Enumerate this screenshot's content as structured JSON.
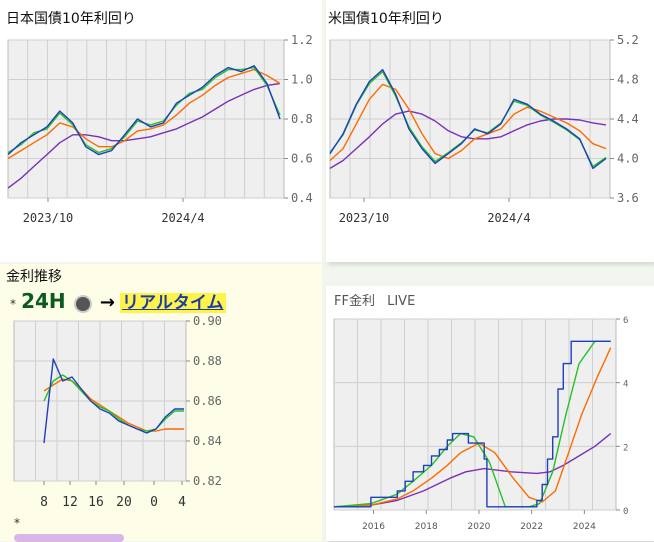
{
  "chart_data": [
    {
      "type": "line",
      "title": "日本国債10年利回り",
      "x_tick_labels": [
        "2023/10",
        "2024/4"
      ],
      "y_ticks": [
        "0.4",
        "0.6",
        "0.8",
        "1.0",
        "1.2"
      ],
      "ylim": [
        0.4,
        1.2
      ],
      "grid": true,
      "series": [
        {
          "color": "#1f3fbf",
          "values": [
            0.62,
            0.68,
            0.72,
            0.76,
            0.84,
            0.78,
            0.66,
            0.62,
            0.64,
            0.72,
            0.8,
            0.76,
            0.78,
            0.88,
            0.92,
            0.96,
            1.02,
            1.06,
            1.04,
            1.07,
            0.98,
            0.8
          ]
        },
        {
          "color": "#22c322",
          "values": [
            0.63,
            0.67,
            0.73,
            0.75,
            0.83,
            0.77,
            0.67,
            0.63,
            0.65,
            0.71,
            0.79,
            0.77,
            0.79,
            0.87,
            0.93,
            0.95,
            1.01,
            1.05,
            1.05,
            1.06,
            0.97,
            0.82
          ]
        },
        {
          "color": "#ff6a00",
          "values": [
            0.6,
            0.64,
            0.68,
            0.72,
            0.78,
            0.76,
            0.7,
            0.66,
            0.66,
            0.69,
            0.74,
            0.75,
            0.77,
            0.82,
            0.88,
            0.92,
            0.97,
            1.01,
            1.03,
            1.05,
            1.02,
            0.98
          ]
        },
        {
          "color": "#7a30b8",
          "values": [
            0.45,
            0.5,
            0.56,
            0.62,
            0.68,
            0.72,
            0.72,
            0.71,
            0.69,
            0.69,
            0.7,
            0.71,
            0.73,
            0.75,
            0.78,
            0.81,
            0.85,
            0.89,
            0.92,
            0.95,
            0.97,
            0.98
          ]
        }
      ]
    },
    {
      "type": "line",
      "title": "米国債10年利回り",
      "x_tick_labels": [
        "2023/10",
        "2024/4"
      ],
      "y_ticks": [
        "3.6",
        "4.0",
        "4.4",
        "4.8",
        "5.2"
      ],
      "ylim": [
        3.6,
        5.2
      ],
      "grid": true,
      "series": [
        {
          "color": "#1f3fbf",
          "values": [
            4.05,
            4.25,
            4.55,
            4.78,
            4.9,
            4.65,
            4.3,
            4.1,
            3.95,
            4.05,
            4.15,
            4.3,
            4.25,
            4.35,
            4.6,
            4.55,
            4.45,
            4.38,
            4.3,
            4.2,
            3.9,
            4.0
          ]
        },
        {
          "color": "#22c322",
          "values": [
            4.06,
            4.24,
            4.54,
            4.76,
            4.88,
            4.63,
            4.32,
            4.12,
            3.97,
            4.06,
            4.16,
            4.29,
            4.26,
            4.36,
            4.58,
            4.54,
            4.44,
            4.37,
            4.29,
            4.19,
            3.92,
            4.01
          ]
        },
        {
          "color": "#ff6a00",
          "values": [
            3.98,
            4.1,
            4.35,
            4.6,
            4.75,
            4.7,
            4.5,
            4.25,
            4.05,
            4.0,
            4.08,
            4.2,
            4.25,
            4.3,
            4.45,
            4.52,
            4.48,
            4.42,
            4.36,
            4.28,
            4.15,
            4.1
          ]
        },
        {
          "color": "#7a30b8",
          "values": [
            3.9,
            3.98,
            4.1,
            4.22,
            4.35,
            4.45,
            4.48,
            4.45,
            4.38,
            4.28,
            4.22,
            4.2,
            4.2,
            4.22,
            4.28,
            4.34,
            4.38,
            4.4,
            4.4,
            4.39,
            4.36,
            4.34
          ]
        }
      ]
    },
    {
      "type": "line",
      "title": "金利推移",
      "x_tick_labels": [
        "8",
        "12",
        "16",
        "20",
        "0",
        "4"
      ],
      "y_ticks": [
        "0.82",
        "0.84",
        "0.86",
        "0.88",
        "0.90"
      ],
      "ylim": [
        0.82,
        0.9
      ],
      "grid": true,
      "series": [
        {
          "color": "#1f3fbf",
          "values": [
            0.839,
            0.881,
            0.87,
            0.872,
            0.866,
            0.86,
            0.856,
            0.854,
            0.85,
            0.848,
            0.846,
            0.844,
            0.846,
            0.852,
            0.856,
            0.856
          ]
        },
        {
          "color": "#22c322",
          "values": [
            0.86,
            0.87,
            0.873,
            0.87,
            0.865,
            0.86,
            0.857,
            0.855,
            0.851,
            0.848,
            0.846,
            0.845,
            0.846,
            0.851,
            0.855,
            0.855
          ]
        },
        {
          "color": "#ff6a00",
          "values": [
            0.865,
            0.868,
            0.871,
            0.87,
            0.866,
            0.861,
            0.858,
            0.855,
            0.852,
            0.849,
            0.847,
            0.845,
            0.845,
            0.846,
            0.846,
            0.846
          ]
        }
      ]
    },
    {
      "type": "line",
      "title": "FF金利",
      "title_suffix": "LIVE",
      "x_tick_labels": [
        "2016",
        "2018",
        "2020",
        "2022",
        "2024"
      ],
      "y_ticks": [
        "0",
        "2",
        "4",
        "6"
      ],
      "ylim": [
        0,
        6
      ],
      "xlim": [
        2014.5,
        2025.2
      ],
      "grid": true,
      "series": [
        {
          "color": "#1f3fbf",
          "step": true,
          "x": [
            2014.5,
            2015.9,
            2016.9,
            2017.2,
            2017.5,
            2017.9,
            2018.2,
            2018.5,
            2018.8,
            2019.0,
            2019.6,
            2020.2,
            2020.3,
            2021.9,
            2022.2,
            2022.4,
            2022.6,
            2022.8,
            2023.0,
            2023.2,
            2023.5,
            2024.7,
            2025.0
          ],
          "y": [
            0.1,
            0.4,
            0.6,
            0.9,
            1.2,
            1.4,
            1.7,
            1.9,
            2.2,
            2.4,
            2.1,
            1.6,
            0.1,
            0.1,
            0.3,
            0.8,
            1.6,
            2.3,
            3.8,
            4.6,
            5.3,
            5.3,
            5.3
          ]
        },
        {
          "color": "#22c322",
          "x": [
            2014.5,
            2015.9,
            2016.9,
            2017.5,
            2018.2,
            2018.8,
            2019.3,
            2019.8,
            2020.4,
            2021.0,
            2021.9,
            2022.3,
            2022.8,
            2023.3,
            2023.8,
            2024.4,
            2025.0
          ],
          "y": [
            0.1,
            0.2,
            0.5,
            0.9,
            1.4,
            2.0,
            2.4,
            2.3,
            1.5,
            0.1,
            0.1,
            0.2,
            1.2,
            3.0,
            4.6,
            5.3,
            5.3
          ]
        },
        {
          "color": "#ff6a00",
          "x": [
            2014.5,
            2015.9,
            2016.9,
            2017.5,
            2018.2,
            2018.8,
            2019.3,
            2020.0,
            2020.6,
            2021.3,
            2021.9,
            2022.4,
            2022.9,
            2023.4,
            2023.9,
            2024.5,
            2025.0
          ],
          "y": [
            0.1,
            0.15,
            0.35,
            0.6,
            1.0,
            1.4,
            1.8,
            2.1,
            1.8,
            1.0,
            0.4,
            0.25,
            0.6,
            1.8,
            3.0,
            4.2,
            5.1
          ]
        },
        {
          "color": "#7a30b8",
          "x": [
            2014.5,
            2015.9,
            2016.9,
            2017.9,
            2018.9,
            2019.5,
            2020.2,
            2021.2,
            2022.2,
            2022.7,
            2023.2,
            2023.8,
            2024.4,
            2025.0
          ],
          "y": [
            0.1,
            0.15,
            0.3,
            0.6,
            1.0,
            1.2,
            1.3,
            1.2,
            1.15,
            1.2,
            1.4,
            1.7,
            2.0,
            2.4
          ]
        }
      ]
    }
  ],
  "realtime_header": {
    "asterisk": "*",
    "label_24h": "24H",
    "arrow": "→",
    "realtime_label": "リアルタイム"
  },
  "footer_asterisk": "*"
}
